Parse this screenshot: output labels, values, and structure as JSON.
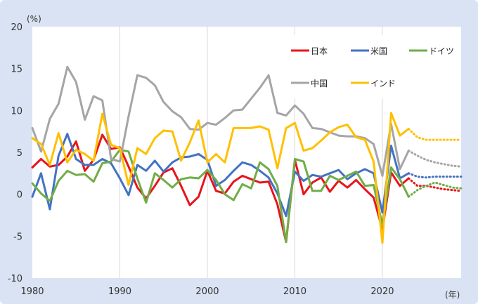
{
  "chart_data": {
    "type": "line",
    "y_unit": "(%)",
    "x_unit": "(年)",
    "ylim": [
      -10,
      20
    ],
    "xlim": [
      1980,
      2029
    ],
    "y_ticks": [
      "20",
      "15",
      "10",
      "5",
      "0",
      "-5",
      "-10"
    ],
    "y_tick_values": [
      20,
      15,
      10,
      5,
      0,
      -5,
      -10
    ],
    "x_ticks": [
      "1980",
      "1990",
      "2000",
      "2010",
      "2020"
    ],
    "x_tick_values": [
      1980,
      1990,
      2000,
      2010,
      2020
    ],
    "grid": "vertical",
    "legend": "top-right",
    "x": [
      1980,
      1981,
      1982,
      1983,
      1984,
      1985,
      1986,
      1987,
      1988,
      1989,
      1990,
      1991,
      1992,
      1993,
      1994,
      1995,
      1996,
      1997,
      1998,
      1999,
      2000,
      2001,
      2002,
      2003,
      2004,
      2005,
      2006,
      2007,
      2008,
      2009,
      2010,
      2011,
      2012,
      2013,
      2014,
      2015,
      2016,
      2017,
      2018,
      2019,
      2020,
      2021,
      2022,
      2023
    ],
    "forecast_x": [
      2023,
      2024,
      2025,
      2026,
      2027,
      2028,
      2029
    ],
    "series": [
      {
        "name": "日本",
        "color": "#e8141b",
        "values": [
          3.2,
          4.2,
          3.3,
          3.5,
          4.5,
          6.3,
          2.8,
          4.1,
          7.1,
          5.4,
          5.6,
          3.3,
          0.8,
          -0.5,
          1.0,
          2.6,
          3.1,
          1.0,
          -1.3,
          -0.3,
          2.8,
          0.4,
          0.1,
          1.5,
          2.2,
          1.8,
          1.4,
          1.5,
          -1.2,
          -5.7,
          4.1,
          0.0,
          1.4,
          2.0,
          0.3,
          1.6,
          0.8,
          1.7,
          0.6,
          -0.4,
          -4.2,
          2.6,
          1.0,
          1.9
        ],
        "forecast": [
          1.9,
          1.0,
          1.0,
          0.8,
          0.6,
          0.5,
          0.4
        ]
      },
      {
        "name": "米国",
        "color": "#4472c4",
        "values": [
          -0.3,
          2.5,
          -1.8,
          4.6,
          7.2,
          4.2,
          3.5,
          3.5,
          4.2,
          3.7,
          1.9,
          -0.1,
          3.5,
          2.8,
          4.0,
          2.7,
          3.8,
          4.4,
          4.5,
          4.8,
          4.1,
          1.0,
          1.7,
          2.8,
          3.8,
          3.5,
          2.8,
          2.0,
          0.1,
          -2.6,
          2.7,
          1.6,
          2.3,
          2.1,
          2.5,
          2.9,
          1.8,
          2.5,
          3.0,
          2.5,
          -2.2,
          5.8,
          1.9,
          2.5
        ],
        "forecast": [
          2.5,
          2.1,
          2.0,
          2.1,
          2.1,
          2.1,
          2.1
        ]
      },
      {
        "name": "ドイツ",
        "color": "#70ad47",
        "values": [
          1.3,
          0.1,
          -0.8,
          1.6,
          2.8,
          2.3,
          2.4,
          1.5,
          3.7,
          3.9,
          5.3,
          5.1,
          1.9,
          -1.0,
          2.5,
          1.7,
          0.8,
          1.8,
          2.0,
          1.9,
          2.9,
          1.7,
          0.0,
          -0.7,
          1.2,
          0.7,
          3.8,
          3.0,
          1.0,
          -5.7,
          4.2,
          3.9,
          0.4,
          0.4,
          2.2,
          1.7,
          2.2,
          2.7,
          1.0,
          1.1,
          -3.7,
          3.2,
          1.8,
          -0.3
        ],
        "forecast": [
          -0.3,
          0.5,
          1.0,
          1.4,
          1.1,
          0.8,
          0.7
        ]
      },
      {
        "name": "中国",
        "color": "#a5a5a5",
        "values": [
          7.9,
          5.1,
          9.0,
          10.8,
          15.2,
          13.4,
          8.9,
          11.7,
          11.2,
          4.2,
          3.9,
          9.3,
          14.2,
          13.9,
          13.0,
          11.0,
          9.9,
          9.2,
          7.8,
          7.7,
          8.5,
          8.3,
          9.1,
          10.0,
          10.1,
          11.4,
          12.7,
          14.2,
          9.7,
          9.4,
          10.6,
          9.6,
          7.9,
          7.8,
          7.4,
          7.0,
          6.9,
          6.9,
          6.7,
          6.0,
          2.2,
          8.4,
          3.0,
          5.2
        ],
        "forecast": [
          5.2,
          4.6,
          4.1,
          3.8,
          3.6,
          3.4,
          3.3
        ]
      },
      {
        "name": "インド",
        "color": "#ffc000",
        "values": [
          6.7,
          6.0,
          3.5,
          7.3,
          3.8,
          5.3,
          4.8,
          4.0,
          9.6,
          5.9,
          5.5,
          1.1,
          5.5,
          4.8,
          6.7,
          7.6,
          7.5,
          4.0,
          6.2,
          8.8,
          3.8,
          4.8,
          3.8,
          7.9,
          7.9,
          7.9,
          8.1,
          7.7,
          3.1,
          7.9,
          8.5,
          5.2,
          5.5,
          6.4,
          7.4,
          8.0,
          8.3,
          6.8,
          6.5,
          3.9,
          -5.8,
          9.7,
          7.0,
          7.8
        ],
        "forecast": [
          7.8,
          6.8,
          6.5,
          6.5,
          6.5,
          6.5,
          6.5
        ]
      }
    ]
  }
}
